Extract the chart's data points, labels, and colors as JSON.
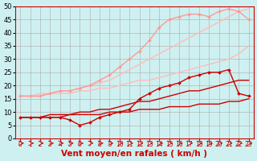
{
  "xlabel": "Vent moyen/en rafales ( km/h )",
  "background_color": "#cff0f0",
  "grid_color": "#aaaaaa",
  "xlim": [
    -0.5,
    23.5
  ],
  "ylim": [
    0,
    50
  ],
  "x": [
    0,
    1,
    2,
    3,
    4,
    5,
    6,
    7,
    8,
    9,
    10,
    11,
    12,
    13,
    14,
    15,
    16,
    17,
    18,
    19,
    20,
    21,
    22,
    23
  ],
  "series": [
    {
      "y": [
        16,
        16,
        16,
        17,
        17,
        17,
        18,
        18,
        19,
        19,
        20,
        21,
        22,
        22,
        23,
        24,
        25,
        26,
        27,
        28,
        29,
        30,
        32,
        35
      ],
      "color": "#ffbbbb",
      "lw": 1.0,
      "marker": null
    },
    {
      "y": [
        16,
        16,
        17,
        17,
        18,
        18,
        19,
        20,
        21,
        22,
        24,
        26,
        28,
        30,
        32,
        34,
        36,
        38,
        40,
        42,
        44,
        46,
        48,
        49
      ],
      "color": "#ffbbbb",
      "lw": 1.0,
      "marker": null
    },
    {
      "y": [
        16,
        16,
        16,
        17,
        18,
        18,
        19,
        20,
        22,
        24,
        27,
        30,
        33,
        37,
        42,
        45,
        46,
        47,
        47,
        46,
        48,
        49,
        48,
        45
      ],
      "color": "#ff9999",
      "lw": 1.0,
      "marker": "D",
      "ms": 2.0
    },
    {
      "y": [
        8,
        8,
        8,
        8,
        8,
        7,
        5,
        6,
        8,
        9,
        10,
        11,
        15,
        17,
        19,
        20,
        21,
        23,
        24,
        25,
        25,
        26,
        17,
        16
      ],
      "color": "#cc0000",
      "lw": 1.0,
      "marker": "D",
      "ms": 2.0
    },
    {
      "y": [
        8,
        8,
        8,
        9,
        9,
        9,
        10,
        10,
        11,
        11,
        12,
        13,
        14,
        14,
        15,
        16,
        17,
        18,
        18,
        19,
        20,
        21,
        22,
        22
      ],
      "color": "#cc0000",
      "lw": 1.0,
      "marker": null
    },
    {
      "y": [
        8,
        8,
        8,
        8,
        8,
        9,
        9,
        9,
        9,
        10,
        10,
        10,
        11,
        11,
        11,
        12,
        12,
        12,
        13,
        13,
        13,
        14,
        14,
        15
      ],
      "color": "#cc0000",
      "lw": 1.0,
      "marker": null
    }
  ],
  "xtick_fontsize": 5.5,
  "ytick_fontsize": 6.0,
  "xlabel_fontsize": 7.5
}
